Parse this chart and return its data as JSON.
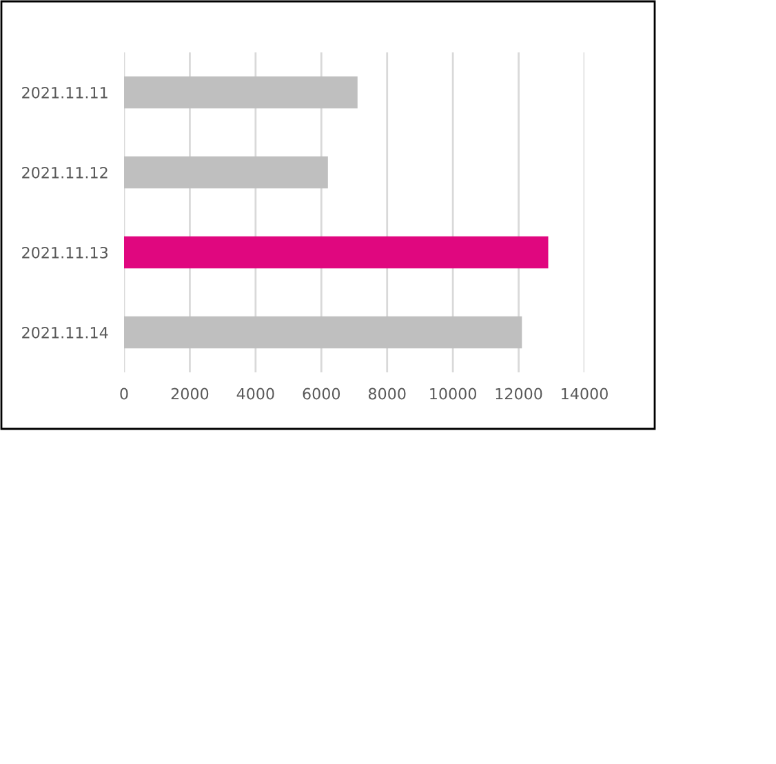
{
  "chart_data": {
    "type": "bar",
    "orientation": "horizontal",
    "categories": [
      "2021.11.11",
      "2021.11.12",
      "2021.11.13",
      "2021.11.14"
    ],
    "values": [
      7100,
      6200,
      12900,
      12100
    ],
    "colors": [
      "#bfbfbf",
      "#bfbfbf",
      "#e0077f",
      "#bfbfbf"
    ],
    "xlim": [
      0,
      14000
    ],
    "xticks": [
      0,
      2000,
      4000,
      6000,
      8000,
      10000,
      12000,
      14000
    ],
    "grid": "x",
    "legend": false
  }
}
